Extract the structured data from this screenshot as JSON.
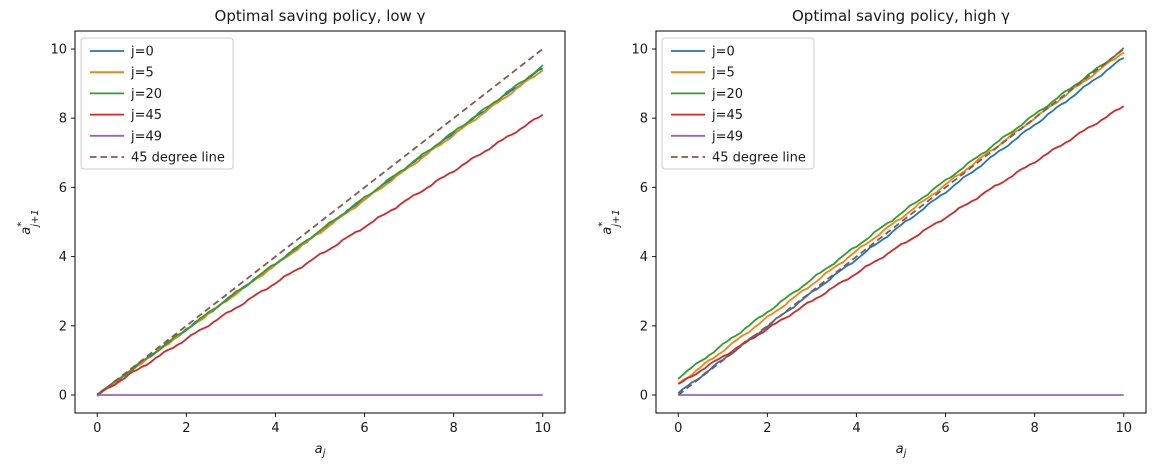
{
  "chart_data": [
    {
      "type": "line",
      "title": "Optimal saving policy, low γ",
      "xlabel": {
        "base": "a",
        "sub": "j"
      },
      "ylabel": {
        "base": "a",
        "sup": "*",
        "sub": "j+1"
      },
      "xlim": [
        -0.5,
        10.5
      ],
      "ylim": [
        -0.52,
        10.52
      ],
      "xticks": [
        0,
        2,
        4,
        6,
        8,
        10
      ],
      "yticks": [
        0,
        2,
        4,
        6,
        8,
        10
      ],
      "grid": false,
      "legend": {
        "position": "upper-left",
        "border_color": "#cccccc",
        "background": "#ffffff"
      },
      "x": [
        0,
        1,
        2,
        3,
        4,
        5,
        6,
        7,
        8,
        9,
        10
      ],
      "series": [
        {
          "name": "j=0",
          "color": "#1f77b4",
          "dash": false,
          "noisy": true,
          "values": [
            0,
            0.95,
            1.89,
            2.84,
            3.78,
            4.73,
            5.67,
            6.62,
            7.56,
            8.51,
            9.45
          ]
        },
        {
          "name": "j=5",
          "color": "#ff7f0e",
          "dash": false,
          "noisy": true,
          "values": [
            0,
            0.94,
            1.88,
            2.82,
            3.76,
            4.7,
            5.64,
            6.58,
            7.52,
            8.46,
            9.4
          ]
        },
        {
          "name": "j=20",
          "color": "#2ca02c",
          "dash": false,
          "noisy": true,
          "values": [
            0,
            0.95,
            1.9,
            2.85,
            3.8,
            4.75,
            5.7,
            6.65,
            7.6,
            8.55,
            9.5
          ]
        },
        {
          "name": "j=45",
          "color": "#d62728",
          "dash": false,
          "noisy": true,
          "values": [
            0,
            0.81,
            1.62,
            2.43,
            3.24,
            4.05,
            4.86,
            5.67,
            6.48,
            7.29,
            8.1
          ]
        },
        {
          "name": "j=49",
          "color": "#9467bd",
          "dash": false,
          "noisy": false,
          "values": [
            0,
            0,
            0,
            0,
            0,
            0,
            0,
            0,
            0,
            0,
            0
          ]
        },
        {
          "name": "45 degree line",
          "color": "#8c564b",
          "dash": true,
          "noisy": false,
          "values": [
            0,
            1,
            2,
            3,
            4,
            5,
            6,
            7,
            8,
            9,
            10
          ]
        }
      ]
    },
    {
      "type": "line",
      "title": "Optimal saving policy, high γ",
      "xlabel": {
        "base": "a",
        "sub": "j"
      },
      "ylabel": {
        "base": "a",
        "sup": "*",
        "sub": "j+1"
      },
      "xlim": [
        -0.5,
        10.5
      ],
      "ylim": [
        -0.52,
        10.52
      ],
      "xticks": [
        0,
        2,
        4,
        6,
        8,
        10
      ],
      "yticks": [
        0,
        2,
        4,
        6,
        8,
        10
      ],
      "grid": false,
      "legend": {
        "position": "upper-left",
        "border_color": "#cccccc",
        "background": "#ffffff"
      },
      "x": [
        0,
        1,
        2,
        3,
        4,
        5,
        6,
        7,
        8,
        9,
        10
      ],
      "series": [
        {
          "name": "j=0",
          "color": "#1f77b4",
          "dash": false,
          "noisy": true,
          "values": [
            0.05,
            1.02,
            1.99,
            2.96,
            3.93,
            4.9,
            5.87,
            6.84,
            7.81,
            8.78,
            9.75
          ]
        },
        {
          "name": "j=5",
          "color": "#ff7f0e",
          "dash": false,
          "noisy": true,
          "values": [
            0.32,
            1.28,
            2.24,
            3.2,
            4.16,
            5.12,
            6.08,
            7.04,
            8.0,
            8.96,
            9.92
          ]
        },
        {
          "name": "j=20",
          "color": "#2ca02c",
          "dash": false,
          "noisy": true,
          "values": [
            0.5,
            1.45,
            2.4,
            3.35,
            4.3,
            5.25,
            6.2,
            7.15,
            8.1,
            9.05,
            10.0
          ]
        },
        {
          "name": "j=45",
          "color": "#d62728",
          "dash": false,
          "noisy": true,
          "values": [
            0.3,
            1.11,
            1.91,
            2.72,
            3.52,
            4.33,
            5.13,
            5.94,
            6.74,
            7.55,
            8.35
          ]
        },
        {
          "name": "j=49",
          "color": "#9467bd",
          "dash": false,
          "noisy": false,
          "values": [
            0,
            0,
            0,
            0,
            0,
            0,
            0,
            0,
            0,
            0,
            0
          ]
        },
        {
          "name": "45 degree line",
          "color": "#8c564b",
          "dash": true,
          "noisy": false,
          "values": [
            0,
            1,
            2,
            3,
            4,
            5,
            6,
            7,
            8,
            9,
            10
          ]
        }
      ]
    }
  ]
}
